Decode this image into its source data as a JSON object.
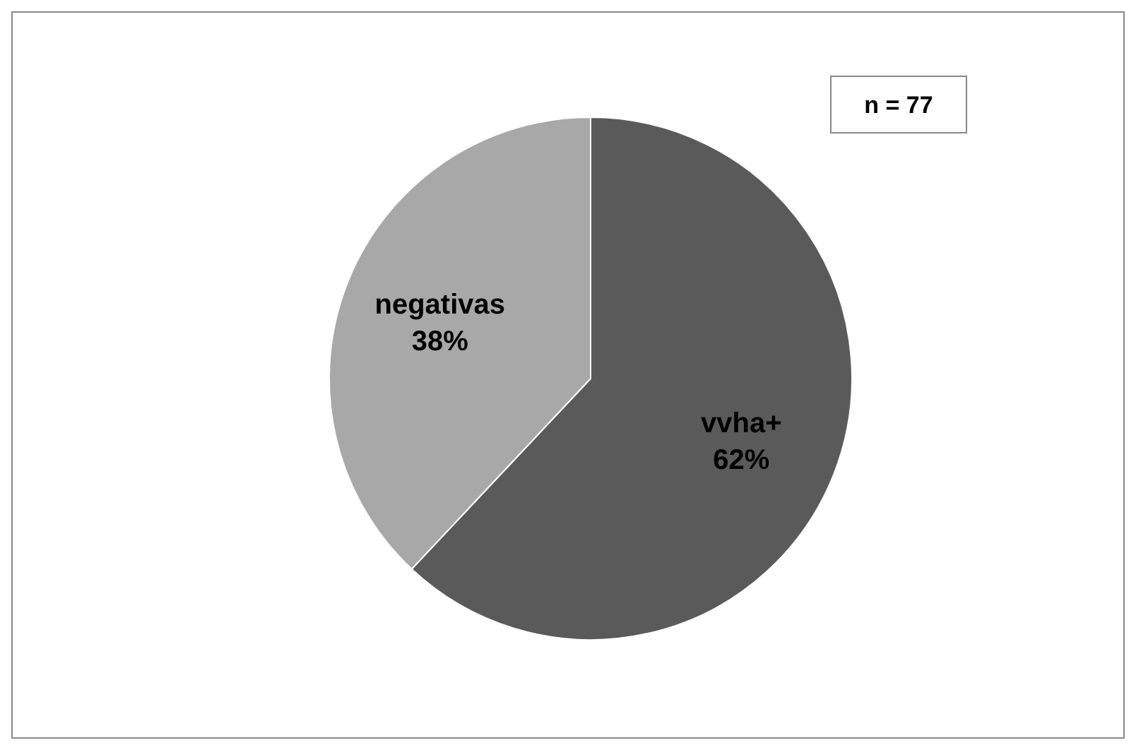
{
  "chart_data": {
    "type": "pie",
    "categories": [
      "vvha+",
      "negativas"
    ],
    "values": [
      62,
      38
    ],
    "colors": [
      "#5a5a5a",
      "#a8a8a8"
    ],
    "value_labels": [
      "62%",
      "38%"
    ],
    "annotations": [
      "n = 77"
    ]
  }
}
